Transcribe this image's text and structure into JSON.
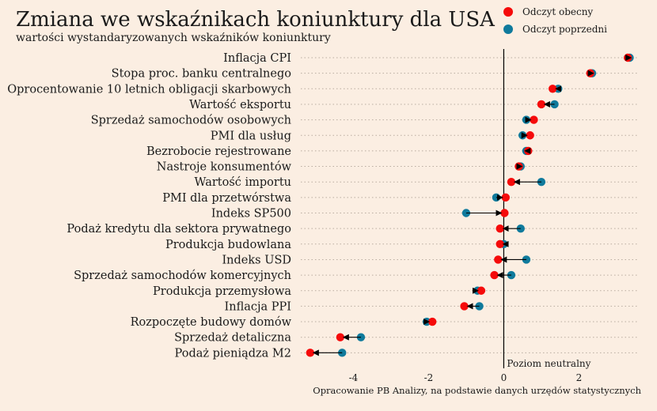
{
  "colors": {
    "background": "#fbeee2",
    "current": "#f50a0a",
    "previous": "#0f7a9c",
    "arrow": "#000000",
    "grid": "#b9aca0"
  },
  "header": {
    "title": "Zmiana we wskaźnikach koniunktury dla USA",
    "subtitle": "wartości wystandaryzowanych wskaźników koniunktury"
  },
  "legend": {
    "current_label": "Odczyt obecny",
    "previous_label": "Odczyt poprzedni"
  },
  "footer": {
    "source": "Opracowanie PB Analizy, na podstawie danych urzędów statystycznych"
  },
  "chart_data": {
    "type": "scatter",
    "title": "Zmiana we wskaźnikach koniunktury dla USA",
    "subtitle": "wartości wystandaryzowanych wskaźników koniunktury",
    "categories": [
      "Inflacja CPI",
      "Stopa proc. banku centralnego",
      "Oprocentowanie 10 letnich obligacji skarbowych",
      "Wartość eksportu",
      "Sprzedaż samochodów osobowych",
      "PMI dla usług",
      "Bezrobocie rejestrowane",
      "Nastroje konsumentów",
      "Wartość importu",
      "PMI dla przetwórstwa",
      "Indeks SP500",
      "Podaż kredytu dla sektora prywatnego",
      "Produkcja budowlana",
      "Indeks USD",
      "Sprzedaż samochodów komercyjnych",
      "Produkcja przemysłowa",
      "Inflacja PPI",
      "Rozpoczęte budowy domów",
      "Sprzedaż detaliczna",
      "Podaż pieniądza M2"
    ],
    "series": [
      {
        "name": "Odczyt obecny",
        "values": [
          3.3,
          2.3,
          1.3,
          1.0,
          0.8,
          0.7,
          0.65,
          0.4,
          0.2,
          0.05,
          0.02,
          -0.1,
          -0.1,
          -0.15,
          -0.25,
          -0.6,
          -1.05,
          -1.9,
          -4.35,
          -5.15
        ]
      },
      {
        "name": "Odczyt poprzedni",
        "values": [
          3.35,
          2.35,
          1.45,
          1.35,
          0.6,
          0.5,
          0.6,
          0.45,
          1.0,
          -0.2,
          -1.0,
          0.45,
          0.0,
          0.6,
          0.2,
          -0.7,
          -0.65,
          -2.05,
          -3.8,
          -4.3
        ]
      }
    ],
    "xlim": [
      -5.4,
      3.55
    ],
    "xticks": [
      "-4",
      "-2",
      "0",
      "2"
    ],
    "xtick_values": [
      -4,
      -2,
      0,
      2
    ],
    "reference_line": {
      "x": 0,
      "label": "Poziom neutralny"
    },
    "grid": "dotted horizontal",
    "legend_position": "top-right"
  }
}
